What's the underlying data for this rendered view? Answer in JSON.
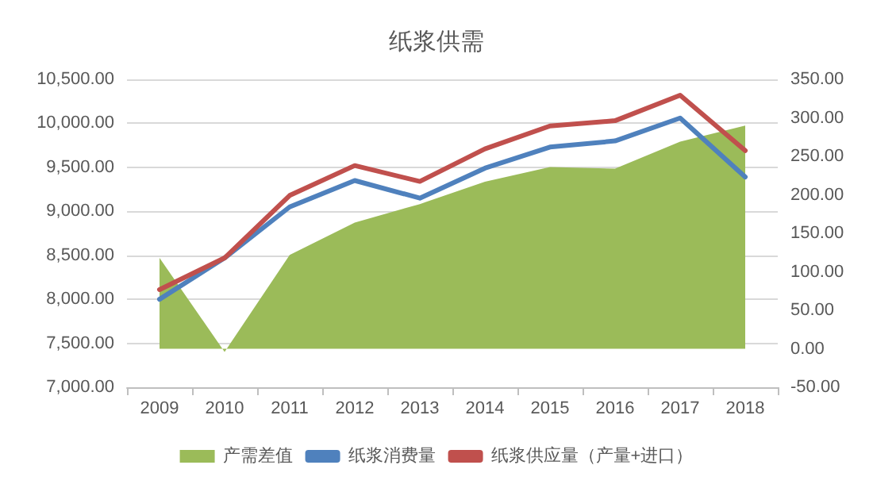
{
  "chart_data": {
    "type": "line",
    "title": "纸浆供需",
    "categories": [
      "2009",
      "2010",
      "2011",
      "2012",
      "2013",
      "2014",
      "2015",
      "2016",
      "2017",
      "2018"
    ],
    "series": [
      {
        "name": "产需差值",
        "type": "area",
        "axis": "y2",
        "color": "#9bbb59",
        "values": [
          118,
          -4,
          122,
          164,
          188,
          217,
          236,
          234,
          269,
          290
        ]
      },
      {
        "name": "纸浆消费量",
        "type": "line",
        "color": "#4f81bd",
        "values": [
          8000,
          8470,
          9050,
          9350,
          9150,
          9490,
          9730,
          9800,
          10060,
          9390
        ]
      },
      {
        "name": "纸浆供应量（产量+进口）",
        "type": "line",
        "color": "#c0504d",
        "values": [
          8110,
          8470,
          9180,
          9520,
          9340,
          9710,
          9970,
          10030,
          10320,
          9690
        ]
      }
    ],
    "ylim": [
      7000,
      10500
    ],
    "yticks": [
      {
        "value": 7000,
        "label": "7,000.00"
      },
      {
        "value": 7500,
        "label": "7,500.00"
      },
      {
        "value": 8000,
        "label": "8,000.00"
      },
      {
        "value": 8500,
        "label": "8,500.00"
      },
      {
        "value": 9000,
        "label": "9,000.00"
      },
      {
        "value": 9500,
        "label": "9,500.00"
      },
      {
        "value": 10000,
        "label": "10,000.00"
      },
      {
        "value": 10500,
        "label": "10,500.00"
      }
    ],
    "y2lim": [
      -50,
      350
    ],
    "y2ticks": [
      {
        "value": -50,
        "label": "-50.00"
      },
      {
        "value": 0,
        "label": "0.00"
      },
      {
        "value": 50,
        "label": "50.00"
      },
      {
        "value": 100,
        "label": "100.00"
      },
      {
        "value": 150,
        "label": "150.00"
      },
      {
        "value": 200,
        "label": "200.00"
      },
      {
        "value": 250,
        "label": "250.00"
      },
      {
        "value": 300,
        "label": "300.00"
      },
      {
        "value": 350,
        "label": "350.00"
      }
    ],
    "grid": "y",
    "legend": "bottom",
    "marker": "none",
    "line_style": "solid"
  }
}
